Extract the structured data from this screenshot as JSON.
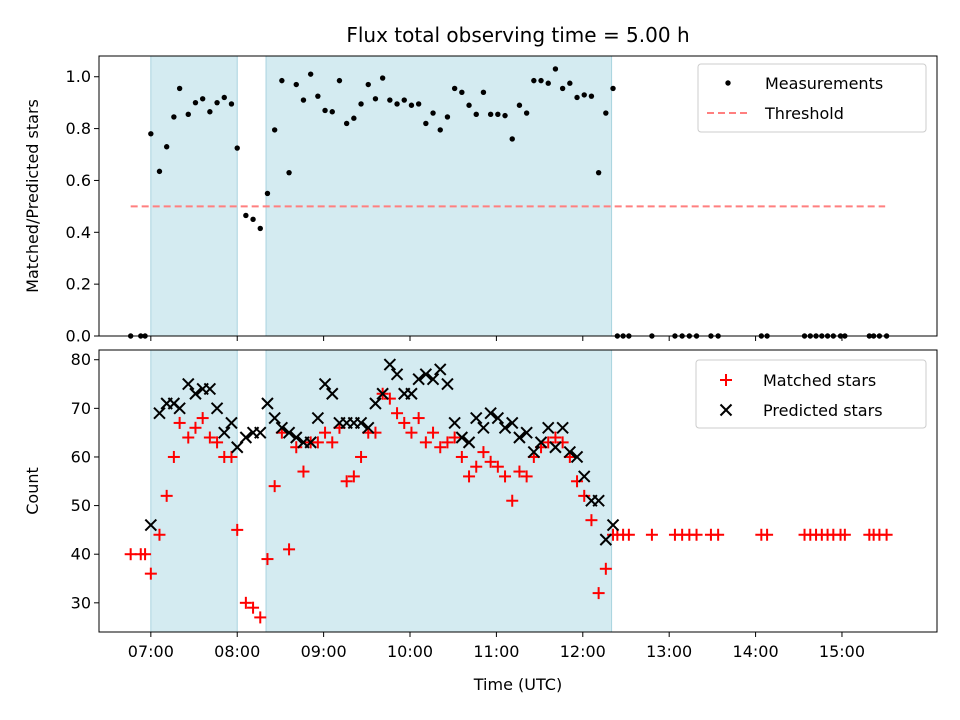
{
  "title": "Flux total observing time = 5.00 h",
  "colors": {
    "shade": "#d4ebf1",
    "shade_edge": "#a9d3df",
    "threshold": "#ff7f7f",
    "matched": "#ff0000",
    "predicted": "#000000",
    "measurement": "#000000"
  },
  "chart_data": [
    {
      "type": "scatter",
      "ylabel": "Matched/Predicted stars",
      "ylim": [
        0,
        1.08
      ],
      "xlim": [
        "06:24",
        "16:06"
      ],
      "yticks": [
        0.0,
        0.2,
        0.4,
        0.6,
        0.8,
        1.0
      ],
      "ytick_labels": [
        "0.0",
        "0.2",
        "0.4",
        "0.6",
        "0.8",
        "1.0"
      ],
      "legend_placement": "top-right",
      "shaded_intervals": [
        [
          "07:00",
          "08:00"
        ],
        [
          "08:20",
          "12:20"
        ]
      ],
      "series": [
        {
          "name": "Measurements",
          "points": [
            [
              "06:46",
              0.0
            ],
            [
              "06:53",
              0.0
            ],
            [
              "06:56",
              0.0
            ],
            [
              "07:00",
              0.78
            ],
            [
              "07:06",
              0.635
            ],
            [
              "07:11",
              0.73
            ],
            [
              "07:16",
              0.845
            ],
            [
              "07:20",
              0.955
            ],
            [
              "07:26",
              0.855
            ],
            [
              "07:31",
              0.9
            ],
            [
              "07:36",
              0.915
            ],
            [
              "07:41",
              0.865
            ],
            [
              "07:46",
              0.9
            ],
            [
              "07:51",
              0.92
            ],
            [
              "07:56",
              0.895
            ],
            [
              "08:00",
              0.725
            ],
            [
              "08:06",
              0.465
            ],
            [
              "08:11",
              0.45
            ],
            [
              "08:16",
              0.415
            ],
            [
              "08:21",
              0.55
            ],
            [
              "08:26",
              0.795
            ],
            [
              "08:31",
              0.985
            ],
            [
              "08:36",
              0.63
            ],
            [
              "08:41",
              0.97
            ],
            [
              "08:46",
              0.91
            ],
            [
              "08:51",
              1.01
            ],
            [
              "08:56",
              0.925
            ],
            [
              "09:01",
              0.87
            ],
            [
              "09:06",
              0.865
            ],
            [
              "09:11",
              0.985
            ],
            [
              "09:16",
              0.82
            ],
            [
              "09:21",
              0.84
            ],
            [
              "09:26",
              0.895
            ],
            [
              "09:31",
              0.97
            ],
            [
              "09:36",
              0.915
            ],
            [
              "09:41",
              0.995
            ],
            [
              "09:46",
              0.91
            ],
            [
              "09:51",
              0.895
            ],
            [
              "09:56",
              0.91
            ],
            [
              "10:01",
              0.89
            ],
            [
              "10:06",
              0.895
            ],
            [
              "10:11",
              0.82
            ],
            [
              "10:16",
              0.86
            ],
            [
              "10:21",
              0.795
            ],
            [
              "10:26",
              0.845
            ],
            [
              "10:31",
              0.955
            ],
            [
              "10:36",
              0.94
            ],
            [
              "10:41",
              0.89
            ],
            [
              "10:46",
              0.855
            ],
            [
              "10:51",
              0.94
            ],
            [
              "10:56",
              0.855
            ],
            [
              "11:01",
              0.855
            ],
            [
              "11:06",
              0.85
            ],
            [
              "11:11",
              0.76
            ],
            [
              "11:16",
              0.89
            ],
            [
              "11:21",
              0.86
            ],
            [
              "11:26",
              0.985
            ],
            [
              "11:31",
              0.985
            ],
            [
              "11:36",
              0.975
            ],
            [
              "11:41",
              1.03
            ],
            [
              "11:46",
              0.955
            ],
            [
              "11:51",
              0.975
            ],
            [
              "11:56",
              0.92
            ],
            [
              "12:01",
              0.93
            ],
            [
              "12:06",
              0.925
            ],
            [
              "12:11",
              0.63
            ],
            [
              "12:16",
              0.86
            ],
            [
              "12:21",
              0.955
            ],
            [
              "12:24",
              0.0
            ],
            [
              "12:28",
              0.0
            ],
            [
              "12:32",
              0.0
            ],
            [
              "12:48",
              0.0
            ],
            [
              "13:04",
              0.0
            ],
            [
              "13:09",
              0.0
            ],
            [
              "13:14",
              0.0
            ],
            [
              "13:19",
              0.0
            ],
            [
              "13:29",
              0.0
            ],
            [
              "13:34",
              0.0
            ],
            [
              "14:04",
              0.0
            ],
            [
              "14:08",
              0.0
            ],
            [
              "14:34",
              0.0
            ],
            [
              "14:38",
              0.0
            ],
            [
              "14:42",
              0.0
            ],
            [
              "14:46",
              0.0
            ],
            [
              "14:50",
              0.0
            ],
            [
              "14:54",
              0.0
            ],
            [
              "14:59",
              0.0
            ],
            [
              "15:02",
              0.0
            ],
            [
              "15:19",
              0.0
            ],
            [
              "15:22",
              0.0
            ],
            [
              "15:26",
              0.0
            ],
            [
              "15:31",
              0.0
            ]
          ]
        },
        {
          "name": "Threshold",
          "x": [
            "06:46",
            "15:30"
          ],
          "y": [
            0.5,
            0.5
          ]
        }
      ]
    },
    {
      "type": "scatter",
      "xlabel": "Time (UTC)",
      "ylabel": "Count",
      "ylim": [
        24,
        82
      ],
      "xlim": [
        "06:24",
        "16:06"
      ],
      "xticks": [
        "07:00",
        "08:00",
        "09:00",
        "10:00",
        "11:00",
        "12:00",
        "13:00",
        "14:00",
        "15:00"
      ],
      "yticks": [
        30,
        40,
        50,
        60,
        70,
        80
      ],
      "legend_placement": "top-right",
      "shaded_intervals": [
        [
          "07:00",
          "08:00"
        ],
        [
          "08:20",
          "12:20"
        ]
      ],
      "series": [
        {
          "name": "Matched stars",
          "points": [
            [
              "06:46",
              40
            ],
            [
              "06:53",
              40
            ],
            [
              "06:56",
              40
            ],
            [
              "07:00",
              36
            ],
            [
              "07:06",
              44
            ],
            [
              "07:11",
              52
            ],
            [
              "07:16",
              60
            ],
            [
              "07:20",
              67
            ],
            [
              "07:26",
              64
            ],
            [
              "07:31",
              66
            ],
            [
              "07:36",
              68
            ],
            [
              "07:41",
              64
            ],
            [
              "07:46",
              63
            ],
            [
              "07:51",
              60
            ],
            [
              "07:56",
              60
            ],
            [
              "08:00",
              45
            ],
            [
              "08:06",
              30
            ],
            [
              "08:11",
              29
            ],
            [
              "08:16",
              27
            ],
            [
              "08:21",
              39
            ],
            [
              "08:26",
              54
            ],
            [
              "08:31",
              65
            ],
            [
              "08:36",
              41
            ],
            [
              "08:41",
              62
            ],
            [
              "08:46",
              57
            ],
            [
              "08:51",
              63
            ],
            [
              "08:56",
              63
            ],
            [
              "09:01",
              65
            ],
            [
              "09:06",
              63
            ],
            [
              "09:11",
              66
            ],
            [
              "09:16",
              55
            ],
            [
              "09:21",
              56
            ],
            [
              "09:26",
              60
            ],
            [
              "09:31",
              65
            ],
            [
              "09:36",
              65
            ],
            [
              "09:41",
              73
            ],
            [
              "09:46",
              72
            ],
            [
              "09:51",
              69
            ],
            [
              "09:56",
              67
            ],
            [
              "10:01",
              65
            ],
            [
              "10:06",
              68
            ],
            [
              "10:11",
              63
            ],
            [
              "10:16",
              65
            ],
            [
              "10:21",
              62
            ],
            [
              "10:26",
              63
            ],
            [
              "10:31",
              64
            ],
            [
              "10:36",
              60
            ],
            [
              "10:41",
              56
            ],
            [
              "10:46",
              58
            ],
            [
              "10:51",
              61
            ],
            [
              "10:56",
              59
            ],
            [
              "11:01",
              58
            ],
            [
              "11:06",
              56
            ],
            [
              "11:11",
              51
            ],
            [
              "11:16",
              57
            ],
            [
              "11:21",
              56
            ],
            [
              "11:26",
              60
            ],
            [
              "11:31",
              62
            ],
            [
              "11:36",
              63
            ],
            [
              "11:41",
              64
            ],
            [
              "11:46",
              63
            ],
            [
              "11:51",
              60
            ],
            [
              "11:56",
              55
            ],
            [
              "12:01",
              52
            ],
            [
              "12:06",
              47
            ],
            [
              "12:11",
              32
            ],
            [
              "12:16",
              37
            ],
            [
              "12:21",
              44
            ],
            [
              "12:24",
              44
            ],
            [
              "12:28",
              44
            ],
            [
              "12:32",
              44
            ],
            [
              "12:48",
              44
            ],
            [
              "13:04",
              44
            ],
            [
              "13:09",
              44
            ],
            [
              "13:14",
              44
            ],
            [
              "13:19",
              44
            ],
            [
              "13:29",
              44
            ],
            [
              "13:34",
              44
            ],
            [
              "14:04",
              44
            ],
            [
              "14:08",
              44
            ],
            [
              "14:34",
              44
            ],
            [
              "14:38",
              44
            ],
            [
              "14:42",
              44
            ],
            [
              "14:46",
              44
            ],
            [
              "14:50",
              44
            ],
            [
              "14:54",
              44
            ],
            [
              "14:59",
              44
            ],
            [
              "15:02",
              44
            ],
            [
              "15:19",
              44
            ],
            [
              "15:22",
              44
            ],
            [
              "15:26",
              44
            ],
            [
              "15:31",
              44
            ]
          ]
        },
        {
          "name": "Predicted stars",
          "points": [
            [
              "07:00",
              46
            ],
            [
              "07:06",
              69
            ],
            [
              "07:11",
              71
            ],
            [
              "07:16",
              71
            ],
            [
              "07:20",
              70
            ],
            [
              "07:26",
              75
            ],
            [
              "07:31",
              73
            ],
            [
              "07:36",
              74
            ],
            [
              "07:41",
              74
            ],
            [
              "07:46",
              70
            ],
            [
              "07:51",
              65
            ],
            [
              "07:56",
              67
            ],
            [
              "08:00",
              62
            ],
            [
              "08:06",
              64
            ],
            [
              "08:11",
              65
            ],
            [
              "08:16",
              65
            ],
            [
              "08:21",
              71
            ],
            [
              "08:26",
              68
            ],
            [
              "08:31",
              66
            ],
            [
              "08:36",
              65
            ],
            [
              "08:41",
              64
            ],
            [
              "08:46",
              63
            ],
            [
              "08:51",
              63
            ],
            [
              "08:56",
              68
            ],
            [
              "09:01",
              75
            ],
            [
              "09:06",
              73
            ],
            [
              "09:11",
              67
            ],
            [
              "09:16",
              67
            ],
            [
              "09:21",
              67
            ],
            [
              "09:26",
              67
            ],
            [
              "09:31",
              66
            ],
            [
              "09:36",
              71
            ],
            [
              "09:41",
              73
            ],
            [
              "09:46",
              79
            ],
            [
              "09:51",
              77
            ],
            [
              "09:56",
              73
            ],
            [
              "10:01",
              73
            ],
            [
              "10:06",
              76
            ],
            [
              "10:11",
              77
            ],
            [
              "10:16",
              76
            ],
            [
              "10:21",
              78
            ],
            [
              "10:26",
              75
            ],
            [
              "10:31",
              67
            ],
            [
              "10:36",
              64
            ],
            [
              "10:41",
              63
            ],
            [
              "10:46",
              68
            ],
            [
              "10:51",
              66
            ],
            [
              "10:56",
              69
            ],
            [
              "11:01",
              68
            ],
            [
              "11:06",
              66
            ],
            [
              "11:11",
              67
            ],
            [
              "11:16",
              64
            ],
            [
              "11:21",
              65
            ],
            [
              "11:26",
              61
            ],
            [
              "11:31",
              63
            ],
            [
              "11:36",
              66
            ],
            [
              "11:41",
              62
            ],
            [
              "11:46",
              66
            ],
            [
              "11:51",
              61
            ],
            [
              "11:56",
              60
            ],
            [
              "12:01",
              56
            ],
            [
              "12:06",
              51
            ],
            [
              "12:11",
              51
            ],
            [
              "12:16",
              43
            ],
            [
              "12:21",
              46
            ]
          ]
        }
      ]
    }
  ]
}
